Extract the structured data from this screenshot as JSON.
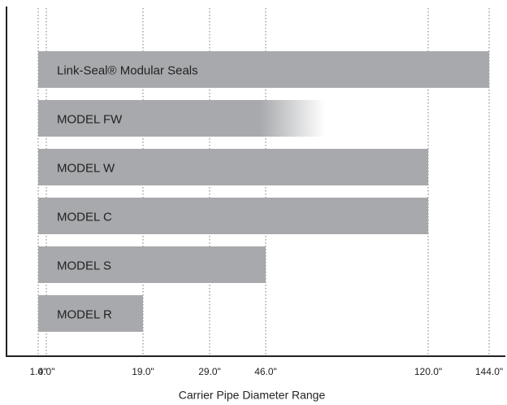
{
  "chart_data": {
    "type": "range-bar",
    "categories": [
      "Link-Seal® Modular Seals",
      "MODEL FW",
      "MODEL W",
      "MODEL C",
      "MODEL S",
      "MODEL R"
    ],
    "starts": [
      1,
      1,
      1,
      1,
      1,
      1
    ],
    "values": [
      144,
      73,
      120,
      120,
      46,
      19
    ],
    "faded": [
      false,
      true,
      false,
      false,
      false,
      false
    ],
    "color": "#a7a9ac",
    "xlabel": "Carrier Pipe Diameter Range",
    "xlim": [
      1,
      144
    ],
    "xticks": [
      {
        "value": 1,
        "label": "1.0\""
      },
      {
        "value": 4,
        "label": "4.0\""
      },
      {
        "value": 19,
        "label": "19.0\""
      },
      {
        "value": 29,
        "label": "29.0\""
      },
      {
        "value": 46,
        "label": "46.0\""
      },
      {
        "value": 120,
        "label": "120.0\""
      },
      {
        "value": 144,
        "label": "144.0\""
      }
    ],
    "grid": true
  }
}
